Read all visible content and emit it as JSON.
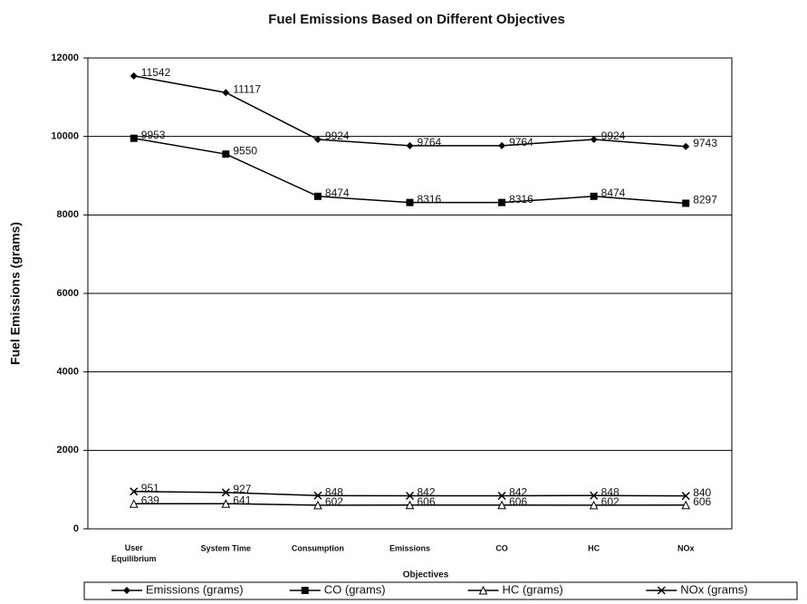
{
  "chart_data": {
    "type": "line",
    "title": "Fuel Emissions Based on Different Objectives",
    "x_label": "Objectives",
    "y_label": "Fuel Emissions (grams)",
    "categories": [
      "User Equilibrium",
      "System Time",
      "Consumption",
      "Emissions",
      "CO",
      "HC",
      "NOx"
    ],
    "series": [
      {
        "name": "Emissions (grams)",
        "color": "#000000",
        "marker": "diamond",
        "values": [
          11542,
          11117,
          9924,
          9764,
          9764,
          9924,
          9743
        ]
      },
      {
        "name": "CO (grams)",
        "color": "#000000",
        "marker": "square",
        "values": [
          9953,
          9550,
          8474,
          8316,
          8316,
          8474,
          8297
        ]
      },
      {
        "name": "HC (grams)",
        "color": "#000000",
        "marker": "triangle",
        "values": [
          639,
          641,
          602,
          606,
          606,
          602,
          606
        ]
      },
      {
        "name": "NOx (grams)",
        "color": "#000000",
        "marker": "x",
        "values": [
          951,
          927,
          848,
          842,
          842,
          848,
          840
        ]
      }
    ],
    "ylim": [
      0,
      12000
    ],
    "yticks": [
      0,
      2000,
      4000,
      6000,
      8000,
      10000,
      12000
    ],
    "grid": true,
    "legend": "bottom"
  }
}
